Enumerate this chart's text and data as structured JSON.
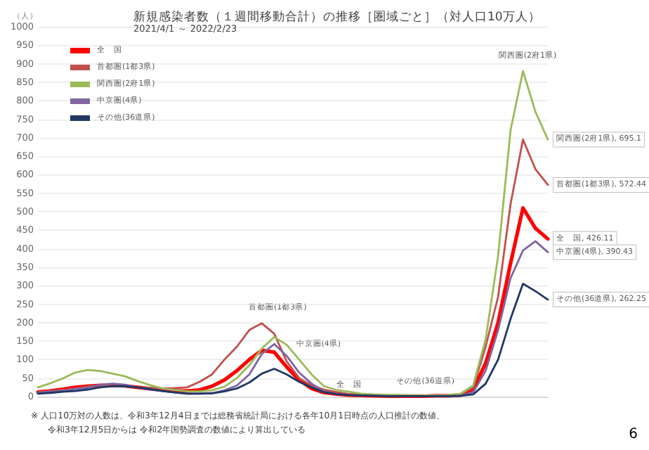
{
  "chart_data": {
    "type": "line",
    "title": "新規感染者数（１週間移動合計）の推移［圏域ごと］（対人口10万人）",
    "subtitle": "2021/4/1 ～ 2022/2/23",
    "ylabel": "（人）",
    "categories": [
      null,
      null,
      null,
      null,
      null,
      null,
      null,
      null,
      null,
      null,
      null,
      null,
      null,
      null,
      null,
      null,
      null,
      null,
      null,
      null,
      null,
      null,
      null,
      null,
      null,
      null,
      null,
      null,
      null,
      null,
      null,
      null,
      null,
      null,
      null,
      null,
      null,
      null,
      null,
      null,
      null,
      null
    ],
    "ylim": [
      0,
      1000
    ],
    "yticks": [
      0,
      50,
      100,
      150,
      200,
      250,
      300,
      350,
      400,
      450,
      500,
      550,
      600,
      650,
      700,
      750,
      800,
      850,
      900,
      950,
      1000
    ],
    "grid": "y",
    "legend": "top left",
    "tick_labels": "y",
    "marker": "none",
    "line_style": "solid",
    "series": [
      {
        "name": "全　国",
        "color": "#ff0000",
        "values": [
          12,
          15,
          20,
          25,
          28,
          30,
          30,
          29,
          25,
          21,
          18,
          16,
          15,
          18,
          28,
          45,
          70,
          100,
          125,
          120,
          80,
          45,
          22,
          11,
          7,
          4,
          3,
          2,
          1,
          1,
          1,
          1,
          2,
          2,
          4,
          20,
          90,
          200,
          360,
          510,
          455,
          426.11
        ],
        "value_labels": [
          null,
          null,
          null,
          null,
          null,
          null,
          null,
          null,
          null,
          null,
          null,
          null,
          null,
          null,
          null,
          null,
          null,
          null,
          null,
          null,
          null,
          null,
          null,
          null,
          null,
          null,
          null,
          null,
          null,
          null,
          null,
          null,
          null,
          null,
          null,
          null,
          null,
          null,
          null,
          null,
          null,
          "全　国, 426.11"
        ]
      },
      {
        "name": "首都圏(1都3県)",
        "color": "#c0504d",
        "values": [
          12,
          15,
          18,
          22,
          27,
          30,
          29,
          28,
          25,
          24,
          22,
          23,
          25,
          40,
          60,
          100,
          135,
          180,
          198,
          170,
          95,
          50,
          30,
          19,
          12,
          7,
          4,
          3,
          2,
          2,
          2,
          2,
          3,
          3,
          6,
          25,
          135,
          270,
          520,
          695,
          615,
          572.44
        ],
        "value_labels": [
          null,
          null,
          null,
          null,
          null,
          null,
          null,
          null,
          null,
          null,
          null,
          null,
          null,
          null,
          null,
          null,
          null,
          null,
          null,
          null,
          null,
          null,
          null,
          null,
          null,
          null,
          null,
          null,
          null,
          null,
          null,
          null,
          null,
          null,
          null,
          null,
          null,
          null,
          null,
          null,
          null,
          "首都圏(1都3県), 572.44"
        ]
      },
      {
        "name": "関西圏(2府1県)",
        "color": "#9bbb59",
        "values": [
          25,
          36,
          49,
          65,
          72,
          69,
          62,
          55,
          42,
          31,
          22,
          18,
          14,
          14,
          17,
          27,
          50,
          85,
          130,
          161,
          140,
          100,
          60,
          28,
          18,
          13,
          8,
          6,
          5,
          4,
          3,
          3,
          3,
          4,
          8,
          30,
          155,
          380,
          720,
          880,
          770,
          695.1
        ],
        "value_labels": [
          null,
          null,
          null,
          null,
          null,
          null,
          null,
          null,
          null,
          null,
          null,
          null,
          null,
          null,
          null,
          null,
          null,
          null,
          null,
          null,
          null,
          null,
          null,
          null,
          null,
          null,
          null,
          null,
          null,
          null,
          null,
          null,
          null,
          null,
          null,
          null,
          null,
          null,
          null,
          null,
          null,
          "関西圏(2府1県), 695.1"
        ]
      },
      {
        "name": "中京圏(4県)",
        "color": "#8064a2",
        "values": [
          10,
          13,
          16,
          20,
          24,
          32,
          35,
          32,
          25,
          19,
          15,
          11,
          8,
          8,
          9,
          17,
          30,
          60,
          115,
          142,
          110,
          65,
          35,
          14,
          7,
          4,
          3,
          2,
          1,
          1,
          1,
          1,
          1,
          1,
          2,
          12,
          70,
          180,
          320,
          395,
          420,
          390.43
        ],
        "value_labels": [
          null,
          null,
          null,
          null,
          null,
          null,
          null,
          null,
          null,
          null,
          null,
          null,
          null,
          null,
          null,
          null,
          null,
          null,
          null,
          null,
          null,
          null,
          null,
          null,
          null,
          null,
          null,
          null,
          null,
          null,
          null,
          null,
          null,
          null,
          null,
          null,
          null,
          null,
          null,
          null,
          null,
          "中京圏(4県), 390.43"
        ]
      },
      {
        "name": "その他(36道県)",
        "color": "#1f3864",
        "values": [
          8,
          10,
          13,
          15,
          19,
          25,
          28,
          28,
          25,
          20,
          15,
          11,
          8,
          8,
          9,
          14,
          22,
          38,
          62,
          75,
          60,
          40,
          25,
          12,
          7,
          4,
          3,
          2,
          1,
          1,
          1,
          1,
          1,
          1,
          2,
          6,
          35,
          100,
          210,
          305,
          285,
          262.25
        ],
        "value_labels": [
          null,
          null,
          null,
          null,
          null,
          null,
          null,
          null,
          null,
          null,
          null,
          null,
          null,
          null,
          null,
          null,
          null,
          null,
          null,
          null,
          null,
          null,
          null,
          null,
          null,
          null,
          null,
          null,
          null,
          null,
          null,
          null,
          null,
          null,
          null,
          null,
          null,
          null,
          null,
          null,
          null,
          "その他(36道県), 262.25"
        ]
      }
    ],
    "annotations": [
      "関西圏(2府1県)",
      "首都圏(1都3県)",
      "中京圏(4県)",
      "全　国",
      "その他(36道県)",
      "※ 人口10万対の人数は、令和3年12月4日までは総務省統計局における各年10月1日時点の人口推計の数値、",
      "令和3年12月5日からは 令和2年国勢調査の数値により算出している",
      "6"
    ]
  }
}
